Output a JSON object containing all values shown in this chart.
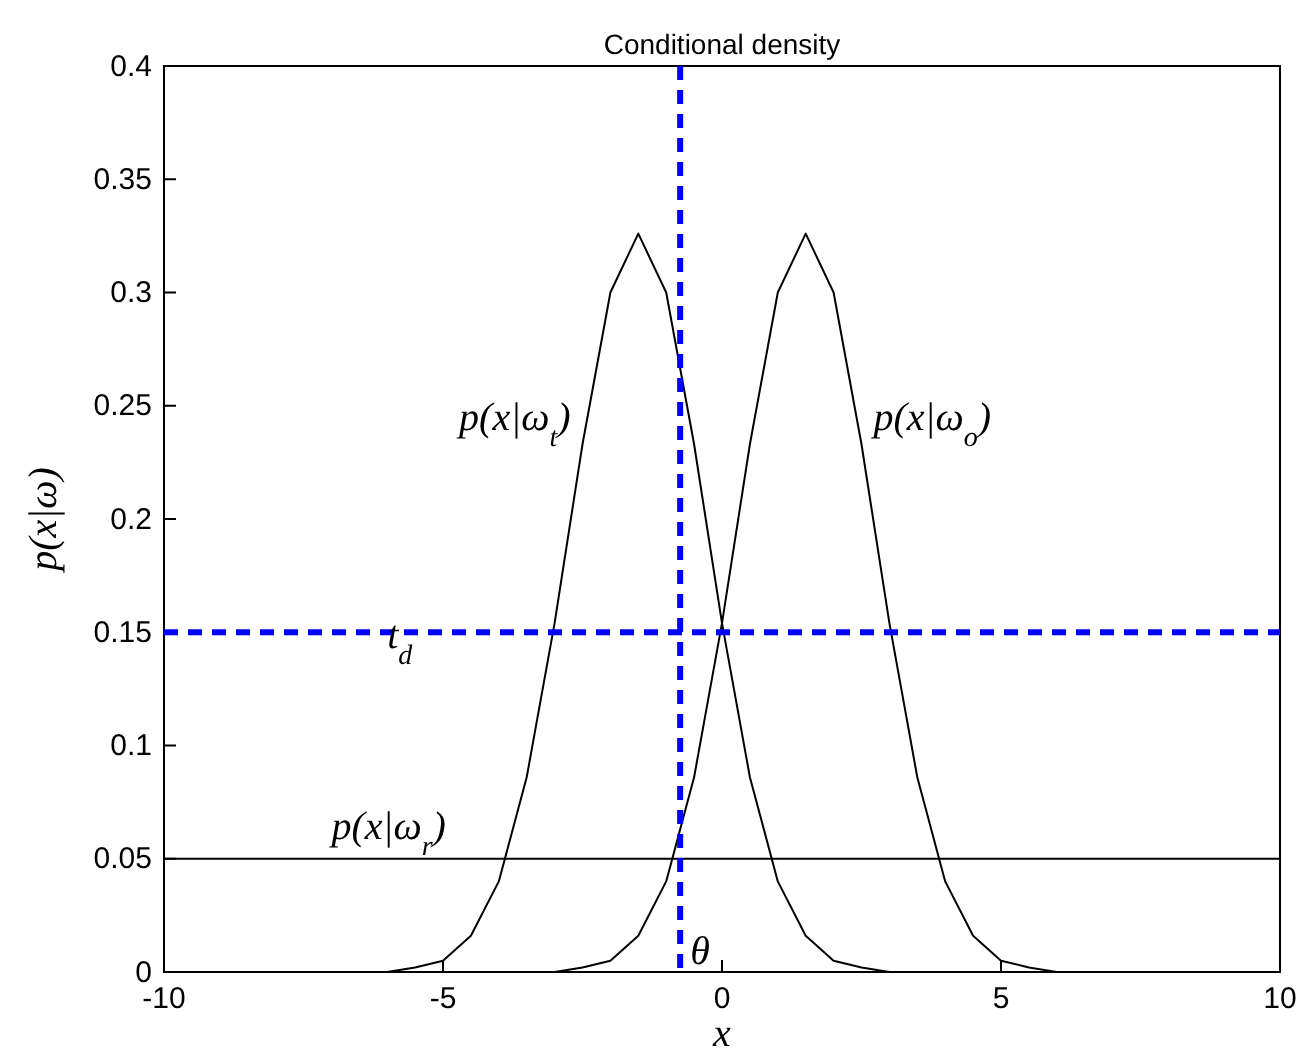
{
  "chart_data": {
    "type": "line",
    "title": "Conditional density",
    "xlabel": "x",
    "ylabel": "p(x|ω)",
    "xlim": [
      -10,
      10
    ],
    "xticks": [
      -10,
      -5,
      0,
      5,
      10
    ],
    "ylim": [
      0,
      0.4
    ],
    "yticks": [
      0,
      0.05,
      0.1,
      0.15,
      0.2,
      0.25,
      0.3,
      0.35,
      0.4
    ],
    "line_style": "solid",
    "series": [
      {
        "name": "p(x|ω$_{t}$)",
        "color": "#000000",
        "x": [
          -7,
          -6,
          -5.5,
          -5,
          -4.5,
          -4,
          -3.5,
          -3,
          -2.5,
          -2,
          -1.5,
          -1,
          -0.5,
          0,
          0.5,
          1,
          1.5,
          2,
          2.5,
          3,
          4
        ],
        "values": [
          0,
          0,
          0.002,
          0.005,
          0.016,
          0.04,
          0.086,
          0.154,
          0.233,
          0.3,
          0.326,
          0.3,
          0.233,
          0.154,
          0.086,
          0.04,
          0.016,
          0.005,
          0.002,
          0,
          0
        ]
      },
      {
        "name": "p(x|ω$_{o}$)",
        "color": "#000000",
        "x": [
          -4,
          -3,
          -2.5,
          -2,
          -1.5,
          -1,
          -0.5,
          0,
          0.5,
          1,
          1.5,
          2,
          2.5,
          3,
          3.5,
          4,
          4.5,
          5,
          5.5,
          6,
          7
        ],
        "values": [
          0,
          0,
          0.002,
          0.005,
          0.016,
          0.04,
          0.086,
          0.154,
          0.233,
          0.3,
          0.326,
          0.3,
          0.233,
          0.154,
          0.086,
          0.04,
          0.016,
          0.005,
          0.002,
          0,
          0
        ]
      },
      {
        "name": "p(x|ω$_{r}$)",
        "color": "#000000",
        "x": [
          -10,
          10
        ],
        "values": [
          0.05,
          0.05
        ]
      }
    ],
    "ref_lines": [
      {
        "axis": "y",
        "value": 0.15,
        "label": "t$_{d}$",
        "color": "#0000ff",
        "line_style": "dashed"
      },
      {
        "axis": "x",
        "value": -0.75,
        "label": "θ",
        "color": "#0000ff",
        "line_style": "dashed"
      }
    ]
  }
}
